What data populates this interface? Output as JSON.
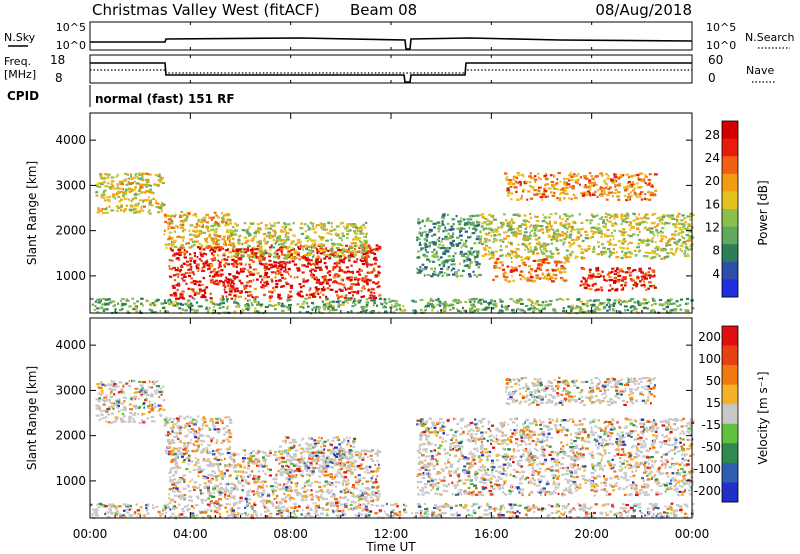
{
  "header": {
    "title": "Christmas Valley West (fitACF)",
    "beam": "Beam 08",
    "date": "08/Aug/2018"
  },
  "params": {
    "nsky_label": "N.Sky",
    "nsky_ticks": [
      "10^5",
      "10^0"
    ],
    "nsearch_label": "N.Search",
    "nsearch_ticks": [
      "10^5",
      "10^0"
    ],
    "freq_label_1": "Freq.",
    "freq_label_2": "[MHz]",
    "freq_ticks": [
      "18",
      "8"
    ],
    "nave_label": "Nave",
    "nave_ticks": [
      "60",
      "0"
    ],
    "cpid_label": "CPID",
    "cpid_value": "normal (fast) 151 RF"
  },
  "chart_data": [
    {
      "type": "heatmap",
      "name": "power",
      "ylabel": "Slant Range [km]",
      "yticks": [
        1000,
        2000,
        3000,
        4000
      ],
      "ylim": [
        180,
        4600
      ],
      "xlim": [
        0,
        24
      ],
      "colorbar_label": "Power [dB]",
      "colorbar_ticks": [
        "4",
        "8",
        "12",
        "16",
        "20",
        "24",
        "28"
      ],
      "colors": [
        "#1f2fe0",
        "#2d4fa8",
        "#2e7d57",
        "#5fa860",
        "#8cc04a",
        "#e6c21e",
        "#f39c12",
        "#f06010",
        "#e81c0c",
        "#d40000"
      ],
      "regions": [
        {
          "t0": 0.2,
          "t1": 2.9,
          "r0": 2400,
          "r1": 3300,
          "level": 0.55
        },
        {
          "t0": 2.9,
          "t1": 5.6,
          "r0": 1600,
          "r1": 2450,
          "level": 0.6
        },
        {
          "t0": 3.1,
          "t1": 11.5,
          "r0": 520,
          "r1": 1700,
          "level": 0.9
        },
        {
          "t0": 5.5,
          "t1": 11.0,
          "r0": 1400,
          "r1": 2200,
          "level": 0.5
        },
        {
          "t0": 0.0,
          "t1": 24.0,
          "r0": 200,
          "r1": 520,
          "level": 0.35
        },
        {
          "t0": 13.0,
          "t1": 15.5,
          "r0": 1000,
          "r1": 2400,
          "level": 0.3
        },
        {
          "t0": 15.5,
          "t1": 24.0,
          "r0": 1400,
          "r1": 2400,
          "level": 0.5
        },
        {
          "t0": 16.0,
          "t1": 19.0,
          "r0": 900,
          "r1": 1400,
          "level": 0.75
        },
        {
          "t0": 19.5,
          "t1": 22.5,
          "r0": 700,
          "r1": 1200,
          "level": 0.9
        },
        {
          "t0": 16.5,
          "t1": 22.5,
          "r0": 2700,
          "r1": 3300,
          "level": 0.7
        }
      ]
    },
    {
      "type": "heatmap",
      "name": "velocity",
      "ylabel": "Slant Range [km]",
      "yticks": [
        1000,
        2000,
        3000,
        4000
      ],
      "ylim": [
        180,
        4600
      ],
      "xlim": [
        0,
        24
      ],
      "xticks": [
        "00:00",
        "04:00",
        "08:00",
        "12:00",
        "16:00",
        "20:00",
        "00:00"
      ],
      "xlabel": "Time UT",
      "colorbar_label": "Velocity [m s⁻¹]",
      "colorbar_ticks": [
        "200",
        "100",
        "50",
        "15",
        "-15",
        "-50",
        "-100",
        "-200"
      ],
      "colors": [
        "#2030c8",
        "#305eb0",
        "#2e8a4e",
        "#60c040",
        "#c8c8c8",
        "#f4b22a",
        "#f07a10",
        "#e84010",
        "#e01010"
      ],
      "regions": [
        {
          "t0": 0.2,
          "t1": 2.9,
          "r0": 2300,
          "r1": 3250,
          "level": 0.5
        },
        {
          "t0": 2.9,
          "t1": 5.6,
          "r0": 1600,
          "r1": 2450,
          "level": 0.65
        },
        {
          "t0": 3.1,
          "t1": 11.5,
          "r0": 520,
          "r1": 1700,
          "level": 0.6
        },
        {
          "t0": 7.5,
          "t1": 10.5,
          "r0": 1200,
          "r1": 2000,
          "level": 0.25
        },
        {
          "t0": 0.0,
          "t1": 24.0,
          "r0": 200,
          "r1": 520,
          "level": 0.3
        },
        {
          "t0": 13.0,
          "t1": 24.0,
          "r0": 700,
          "r1": 2400,
          "level": 0.45
        },
        {
          "t0": 16.5,
          "t1": 22.5,
          "r0": 2700,
          "r1": 3300,
          "level": 0.45
        }
      ]
    }
  ]
}
